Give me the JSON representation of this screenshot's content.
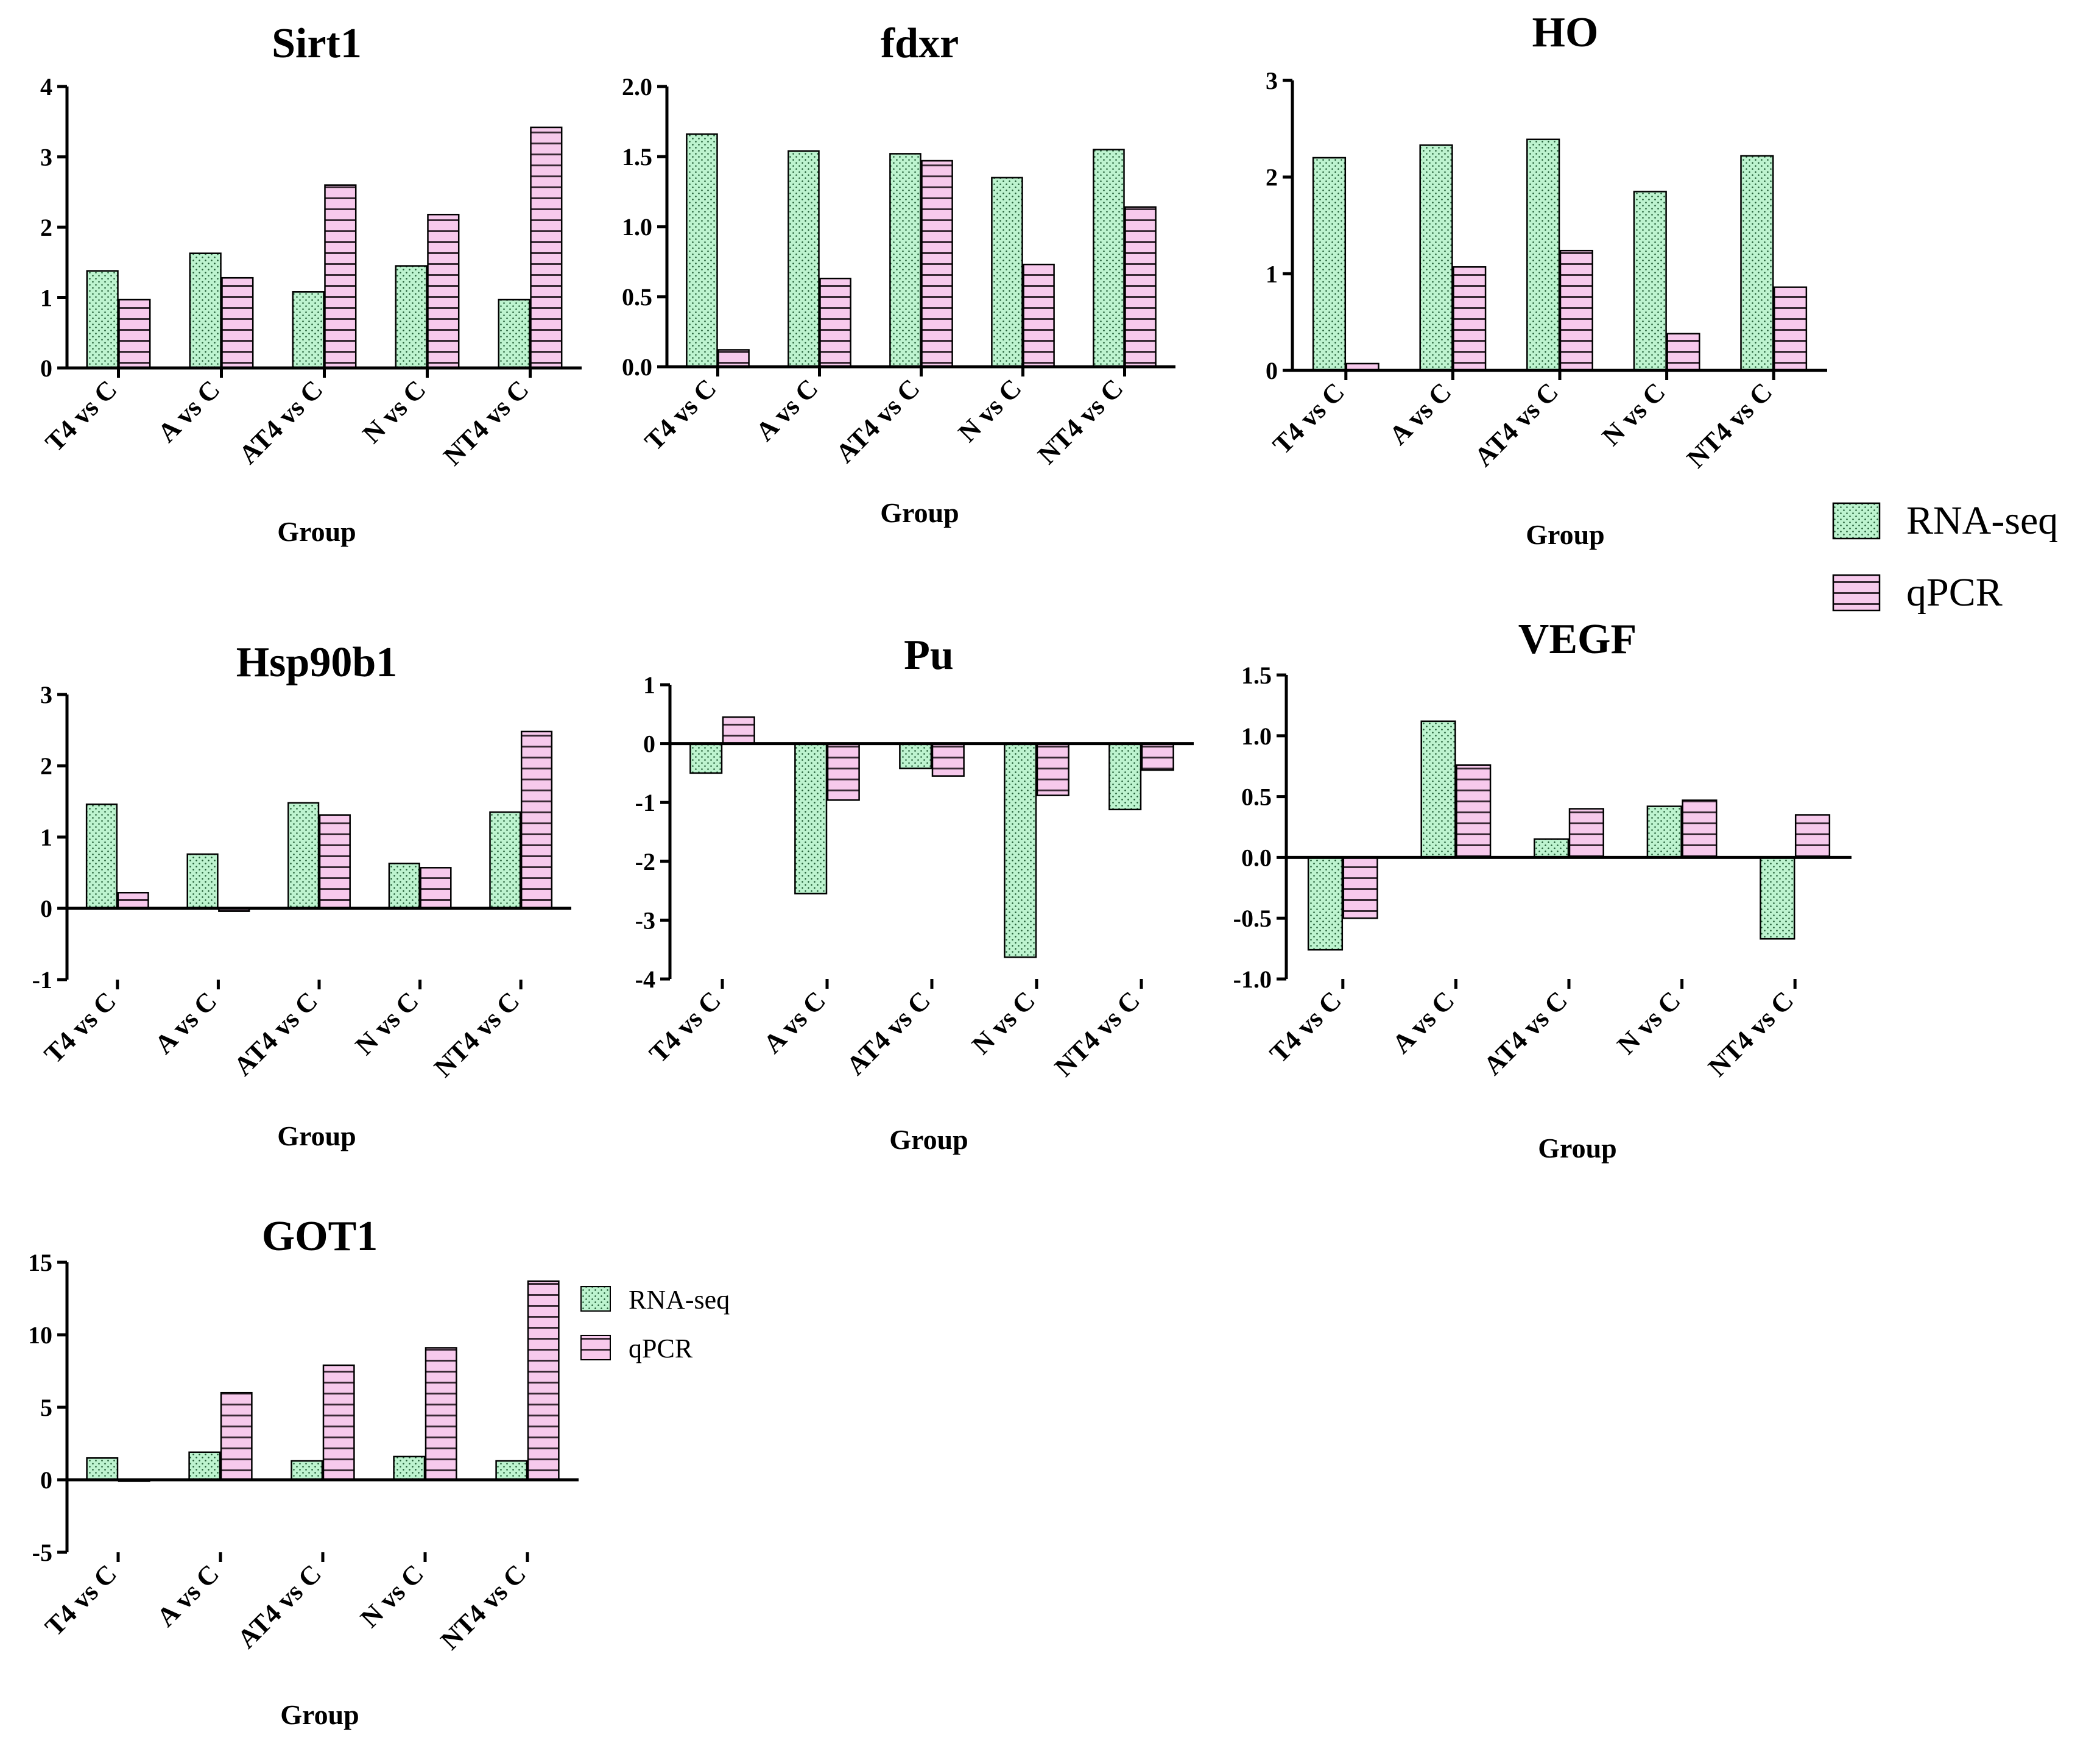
{
  "colors": {
    "rna_fill": "#bdf3cf",
    "qpcr_fill": "#f7c9ec",
    "rna_dot": "#1f5a33",
    "qpcr_line": "#3a2a36",
    "axis": "#000000"
  },
  "legend": {
    "rna": "RNA-seq",
    "qpcr": "qPCR"
  },
  "chart_data": [
    {
      "id": "sirt1",
      "type": "bar",
      "title": "Sirt1",
      "xlabel": "Group",
      "ylabel": "",
      "categories": [
        "T4 vs C",
        "A vs C",
        "AT4 vs C",
        "N vs C",
        "NT4 vs C"
      ],
      "ylim": [
        0,
        4
      ],
      "yticks": [
        0,
        1,
        2,
        3,
        4
      ],
      "ytick_labels": [
        "0",
        "1",
        "2",
        "3",
        "4"
      ],
      "series": [
        {
          "name": "RNA-seq",
          "values": [
            1.38,
            1.63,
            1.08,
            1.45,
            0.97
          ]
        },
        {
          "name": "qPCR",
          "values": [
            0.97,
            1.28,
            2.6,
            2.18,
            3.42
          ]
        }
      ]
    },
    {
      "id": "fdxr",
      "type": "bar",
      "title": "fdxr",
      "xlabel": "Group",
      "ylabel": "",
      "categories": [
        "T4 vs C",
        "A vs C",
        "AT4 vs C",
        "N vs C",
        "NT4 vs C"
      ],
      "ylim": [
        0,
        2
      ],
      "yticks": [
        0,
        0.5,
        1,
        1.5,
        2
      ],
      "ytick_labels": [
        "0.0",
        "0.5",
        "1.0",
        "1.5",
        "2.0"
      ],
      "series": [
        {
          "name": "RNA-seq",
          "values": [
            1.66,
            1.54,
            1.52,
            1.35,
            1.55
          ]
        },
        {
          "name": "qPCR",
          "values": [
            0.12,
            0.63,
            1.47,
            0.73,
            1.14
          ]
        }
      ]
    },
    {
      "id": "ho",
      "type": "bar",
      "title": "HO",
      "xlabel": "Group",
      "ylabel": "",
      "categories": [
        "T4 vs C",
        "A vs C",
        "AT4 vs C",
        "N vs C",
        "NT4 vs C"
      ],
      "ylim": [
        0,
        3
      ],
      "yticks": [
        0,
        1,
        2,
        3
      ],
      "ytick_labels": [
        "0",
        "1",
        "2",
        "3"
      ],
      "series": [
        {
          "name": "RNA-seq",
          "values": [
            2.2,
            2.33,
            2.39,
            1.85,
            2.22
          ]
        },
        {
          "name": "qPCR",
          "values": [
            0.07,
            1.07,
            1.24,
            0.38,
            0.86
          ]
        }
      ]
    },
    {
      "id": "hsp90b1",
      "type": "bar",
      "title": "Hsp90b1",
      "xlabel": "Group",
      "ylabel": "",
      "categories": [
        "T4 vs C",
        "A vs C",
        "AT4 vs C",
        "N vs C",
        "NT4 vs C"
      ],
      "ylim": [
        -1,
        3
      ],
      "yticks": [
        -1,
        0,
        1,
        2,
        3
      ],
      "ytick_labels": [
        "-1",
        "0",
        "1",
        "2",
        "3"
      ],
      "series": [
        {
          "name": "RNA-seq",
          "values": [
            1.46,
            0.76,
            1.48,
            0.63,
            1.35
          ]
        },
        {
          "name": "qPCR",
          "values": [
            0.22,
            -0.04,
            1.31,
            0.57,
            2.48
          ]
        }
      ]
    },
    {
      "id": "pu",
      "type": "bar",
      "title": "Pu",
      "xlabel": "Group",
      "ylabel": "",
      "categories": [
        "T4 vs C",
        "A vs C",
        "AT4 vs C",
        "N vs C",
        "NT4 vs C"
      ],
      "ylim": [
        -4,
        1
      ],
      "yticks": [
        -4,
        -3,
        -2,
        -1,
        0,
        1
      ],
      "ytick_labels": [
        "-4",
        "-3",
        "-2",
        "-1",
        "0",
        "1"
      ],
      "series": [
        {
          "name": "RNA-seq",
          "values": [
            -0.5,
            -2.55,
            -0.42,
            -3.63,
            -1.12
          ]
        },
        {
          "name": "qPCR",
          "values": [
            0.45,
            -0.96,
            -0.55,
            -0.88,
            -0.45
          ]
        }
      ]
    },
    {
      "id": "vegf",
      "type": "bar",
      "title": "VEGF",
      "xlabel": "Group",
      "ylabel": "",
      "categories": [
        "T4 vs C",
        "A vs C",
        "AT4 vs C",
        "N vs C",
        "NT4 vs C"
      ],
      "ylim": [
        -1,
        1.5
      ],
      "yticks": [
        -1,
        -0.5,
        0,
        0.5,
        1,
        1.5
      ],
      "ytick_labels": [
        "-1.0",
        "-0.5",
        "0.0",
        "0.5",
        "1.0",
        "1.5"
      ],
      "series": [
        {
          "name": "RNA-seq",
          "values": [
            -0.76,
            1.12,
            0.15,
            0.42,
            -0.67
          ]
        },
        {
          "name": "qPCR",
          "values": [
            -0.5,
            0.76,
            0.4,
            0.47,
            0.35
          ]
        }
      ]
    },
    {
      "id": "got1",
      "type": "bar",
      "title": "GOT1",
      "xlabel": "Group",
      "ylabel": "",
      "categories": [
        "T4 vs C",
        "A vs C",
        "AT4 vs C",
        "N vs C",
        "NT4 vs C"
      ],
      "ylim": [
        -5,
        15
      ],
      "yticks": [
        -5,
        0,
        5,
        10,
        15
      ],
      "ytick_labels": [
        "-5",
        "0",
        "5",
        "10",
        "15"
      ],
      "series": [
        {
          "name": "RNA-seq",
          "values": [
            1.5,
            1.9,
            1.3,
            1.6,
            1.3
          ]
        },
        {
          "name": "qPCR",
          "values": [
            -0.1,
            6.0,
            7.9,
            9.1,
            13.7
          ]
        }
      ]
    }
  ]
}
